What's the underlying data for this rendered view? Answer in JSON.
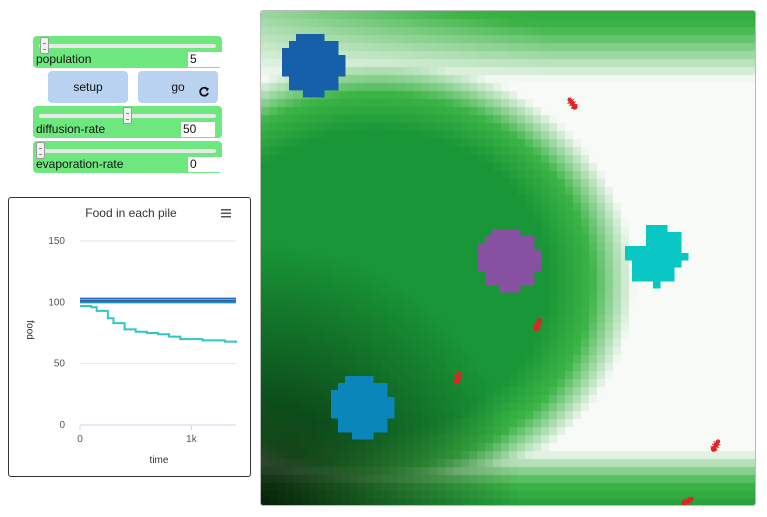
{
  "controls": {
    "population": {
      "label": "population",
      "value": "5",
      "fraction": 0.04
    },
    "diffusion_rate": {
      "label": "diffusion-rate",
      "value": "50",
      "fraction": 0.5
    },
    "evaporation_rate": {
      "label": "evaporation-rate",
      "value": "0",
      "fraction": 0.0
    },
    "setup_label": "setup",
    "go_label": "go",
    "go_forever_icon": "rotate-icon"
  },
  "plot": {
    "menu_icon": "hamburger-menu-icon",
    "chart_data": {
      "type": "line",
      "title": "Food in each pile",
      "xlabel": "time",
      "ylabel": "food",
      "xlim": [
        0,
        1400
      ],
      "ylim": [
        0,
        150
      ],
      "x_ticks": [
        "0",
        "1k"
      ],
      "y_ticks": [
        "0",
        "50",
        "100",
        "150"
      ],
      "grid": true,
      "series": [
        {
          "color": "#1e6fbf",
          "x": [
            0,
            1400
          ],
          "y": [
            103,
            103
          ]
        },
        {
          "color": "#0f4f8f",
          "x": [
            0,
            1400
          ],
          "y": [
            101,
            101
          ]
        },
        {
          "color": "#2a8ac4",
          "x": [
            0,
            1400
          ],
          "y": [
            100,
            100
          ]
        },
        {
          "color": "#2cc7c7",
          "x": [
            0,
            100,
            150,
            250,
            300,
            400,
            500,
            600,
            700,
            800,
            900,
            1000,
            1100,
            1200,
            1300,
            1400
          ],
          "y": [
            97,
            96,
            93,
            87,
            83,
            78,
            76,
            75,
            74,
            72,
            70,
            70,
            69,
            69,
            68,
            67
          ]
        }
      ]
    }
  },
  "world": {
    "food_piles": [
      {
        "color": "#1560a8"
      },
      {
        "color": "#8551a0"
      },
      {
        "color": "#07c6c4"
      },
      {
        "color": "#0a86ba"
      }
    ],
    "ant_color": "#e02424",
    "ant_count": 5
  }
}
